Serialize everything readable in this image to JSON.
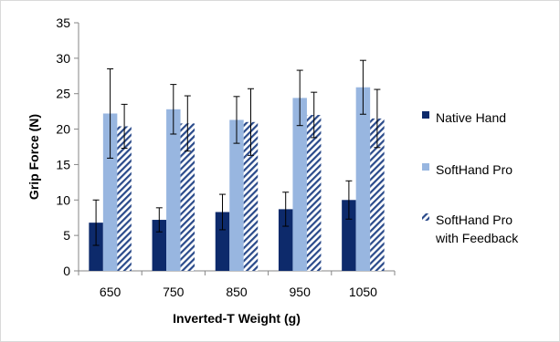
{
  "chart_data": {
    "type": "bar",
    "title": "",
    "xlabel": "Inverted-T Weight (g)",
    "ylabel": "Grip Force (N)",
    "ylim": [
      0,
      35
    ],
    "yticks": [
      0,
      5,
      10,
      15,
      20,
      25,
      30,
      35
    ],
    "grid": false,
    "legend_position": "right",
    "categories": [
      "650",
      "750",
      "850",
      "950",
      "1050"
    ],
    "series": [
      {
        "name": "Native Hand",
        "color": "#0d2a6b",
        "pattern": "solid",
        "values": [
          6.8,
          7.2,
          8.3,
          8.7,
          10.0
        ],
        "error": [
          3.2,
          1.7,
          2.5,
          2.4,
          2.7
        ]
      },
      {
        "name": "SoftHand Pro",
        "color": "#98b6e0",
        "pattern": "solid",
        "values": [
          22.2,
          22.8,
          21.3,
          24.4,
          25.9
        ],
        "error": [
          6.3,
          3.5,
          3.3,
          3.9,
          3.8
        ]
      },
      {
        "name": "SoftHand Pro with Feedback",
        "legend_lines": [
          "SoftHand Pro",
          "with Feedback"
        ],
        "color": "#2a4a8a",
        "pattern": "diagonal-hatch",
        "values": [
          20.4,
          20.8,
          21.0,
          22.0,
          21.5
        ],
        "error": [
          3.1,
          3.9,
          4.7,
          3.2,
          4.1
        ]
      }
    ]
  }
}
